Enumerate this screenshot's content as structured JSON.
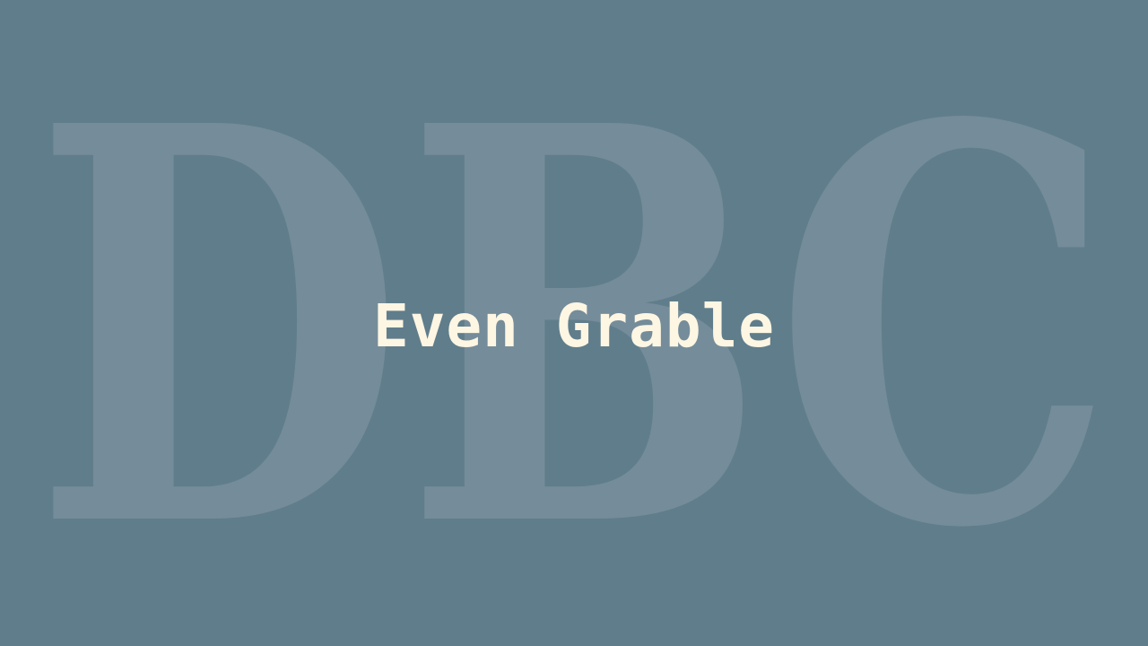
{
  "background": {
    "color": "#607d8b",
    "watermark": {
      "text": "DBC",
      "color": "#758c9a"
    }
  },
  "title": {
    "text": "Even Grable",
    "color": "#fdf6e3"
  }
}
